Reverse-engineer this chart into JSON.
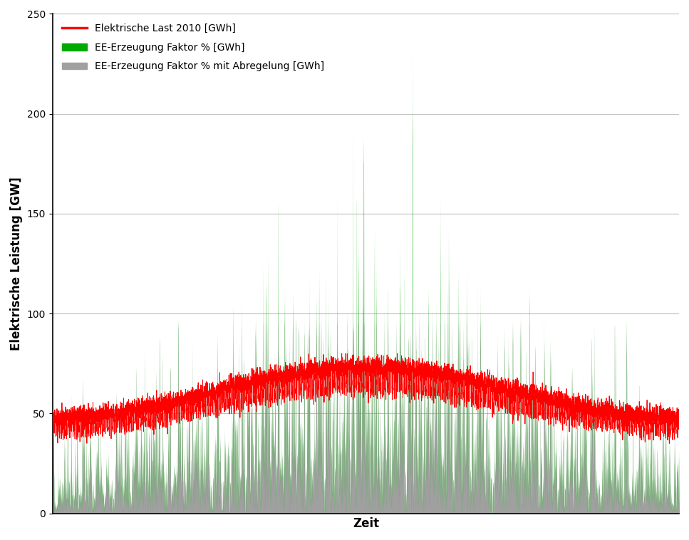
{
  "n_points": 8760,
  "ylim": [
    0,
    250
  ],
  "yticks": [
    0,
    50,
    100,
    150,
    200,
    250
  ],
  "xlabel": "Zeit",
  "ylabel": "Elektrische Leistung [GW]",
  "legend_labels": [
    "Elektrische Last 2010 [GWh]",
    "EE-Erzeugung Faktor % [GWh]",
    "EE-Erzeugung Faktor % mit Abregelung [GWh]"
  ],
  "colors": {
    "load": "#FF0000",
    "ee_gen": "#00AA00",
    "ee_capped": "#A0A0A0"
  },
  "cap_level": 95,
  "figsize": [
    9.67,
    7.58
  ],
  "dpi": 100,
  "background_color": "#FFFFFF",
  "grid_color": "#BEBEBE",
  "xlabel_fontsize": 12,
  "ylabel_fontsize": 12,
  "legend_fontsize": 10,
  "tick_fontsize": 10
}
